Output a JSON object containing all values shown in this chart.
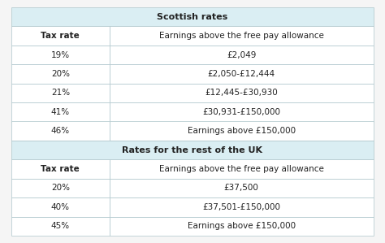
{
  "title1": "Scottish rates",
  "title2": "Rates for the rest of the UK",
  "header": [
    "Tax rate",
    "Earnings above the free pay allowance"
  ],
  "scottish_rows": [
    [
      "19%",
      "£2,049"
    ],
    [
      "20%",
      "£2,050-£12,444"
    ],
    [
      "21%",
      "£12,445-£30,930"
    ],
    [
      "41%",
      "£30,931-£150,000"
    ],
    [
      "46%",
      "Earnings above £150,000"
    ]
  ],
  "uk_rows": [
    [
      "20%",
      "£37,500"
    ],
    [
      "40%",
      "£37,501-£150,000"
    ],
    [
      "45%",
      "Earnings above £150,000"
    ]
  ],
  "header_bg": "#daeef3",
  "row_bg_white": "#ffffff",
  "border_color": "#aec6cb",
  "text_color": "#222222",
  "title_fontsize": 8,
  "header_fontsize": 7.5,
  "row_fontsize": 7.5,
  "background_color": "#f5f5f5",
  "col_split": 0.27
}
